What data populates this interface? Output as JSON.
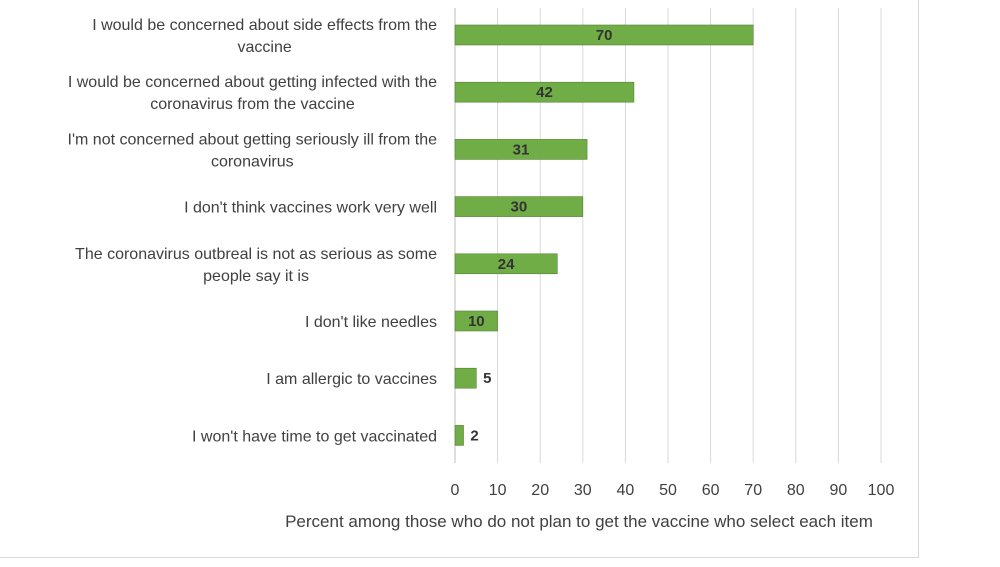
{
  "chart_data": {
    "type": "bar",
    "orientation": "horizontal",
    "categories": [
      [
        "I would be concerned about side effects from the",
        "vaccine"
      ],
      [
        "I would be concerned about getting infected with the",
        "coronavirus from the vaccine"
      ],
      [
        "I'm not concerned about getting seriously ill from the",
        "coronavirus"
      ],
      [
        "I don't think vaccines work very well"
      ],
      [
        "The coronavirus outbreal is not as serious as some",
        "people say it is"
      ],
      [
        "I don't like needles"
      ],
      [
        "I am allergic to vaccines"
      ],
      [
        "I won't have time to get vaccinated"
      ]
    ],
    "values": [
      70,
      42,
      31,
      30,
      24,
      10,
      5,
      2
    ],
    "xlabel": "Percent among those who do not plan to get the vaccine who select each item",
    "xlim": [
      0,
      100
    ],
    "xticks": [
      0,
      10,
      20,
      30,
      40,
      50,
      60,
      70,
      80,
      90,
      100
    ],
    "grid": true,
    "bar_color": "#70ad47",
    "bar_edge_color": "#548235",
    "grid_color": "#d9d9d9"
  }
}
